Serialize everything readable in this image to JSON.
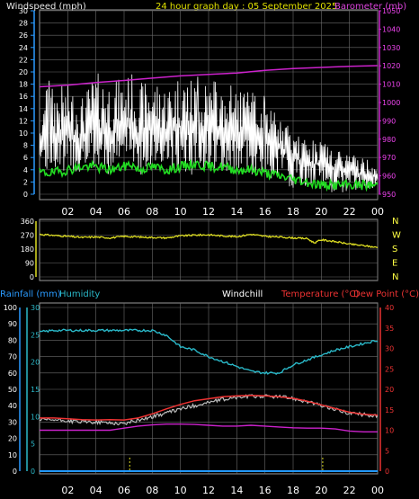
{
  "header": {
    "windspeed": "Windspeed (mph)",
    "day": "24 hour graph day : 05 September 2025",
    "barometer": "Barometer (mb)"
  },
  "colors": {
    "background": "#000000",
    "frame": "#9a9a9a",
    "grid": "#6b6b6b",
    "wind": "#ffffff",
    "wind_avg": "#22dd22",
    "barometer": "#cc22cc",
    "direction": "#dddd22",
    "rain": "#2299ff",
    "humidity": "#2ab8c8",
    "windchill": "#ffffff",
    "temperature": "#ee3333",
    "dewpoint": "#cc22cc",
    "rain_ticks": "#dddd22"
  },
  "chart_data": [
    {
      "type": "line",
      "title": "24 hour graph day : 05 September 2025",
      "x_ticks": [
        "02",
        "04",
        "06",
        "08",
        "10",
        "12",
        "14",
        "16",
        "18",
        "20",
        "22",
        "00"
      ],
      "y_left": {
        "label": "Windspeed (mph)",
        "range": [
          0,
          30
        ],
        "ticks": [
          "0",
          "2",
          "4",
          "6",
          "8",
          "10",
          "12",
          "14",
          "16",
          "18",
          "20",
          "22",
          "24",
          "26",
          "28",
          "30"
        ]
      },
      "y_right": {
        "label": "Barometer (mb)",
        "range": [
          950,
          1050
        ],
        "ticks": [
          "950",
          "960",
          "970",
          "980",
          "990",
          "1000",
          "1010",
          "1020",
          "1030",
          "1040",
          "1050"
        ]
      },
      "grid": true,
      "series": [
        {
          "name": "Windspeed (mph)",
          "axis": "left",
          "gust_envelope": true,
          "x": [
            0,
            1,
            2,
            3,
            4,
            5,
            6,
            6.5,
            7,
            8,
            9,
            10,
            11,
            12,
            13,
            14,
            15,
            16,
            17,
            18,
            19,
            20,
            21,
            22,
            23,
            24
          ],
          "avg": [
            9,
            9,
            10,
            9,
            11,
            10,
            11,
            12,
            10,
            11,
            10,
            11,
            10,
            11,
            10,
            10,
            10,
            9,
            8,
            6,
            5,
            5,
            4,
            4,
            3,
            3
          ],
          "max": [
            17,
            18,
            18,
            16,
            20,
            19,
            19,
            20,
            18,
            19,
            18,
            20,
            19,
            19,
            18,
            18,
            17,
            15,
            13,
            10,
            9,
            9,
            7,
            7,
            6,
            6
          ],
          "min": [
            4,
            3,
            4,
            3,
            4,
            3,
            4,
            5,
            3,
            4,
            3,
            4,
            3,
            4,
            3,
            3,
            3,
            3,
            2,
            1,
            1,
            1,
            0,
            0,
            1,
            1
          ]
        },
        {
          "name": "Wind average",
          "axis": "left",
          "x": [
            0,
            1,
            2,
            3,
            4,
            5,
            6,
            6.5,
            7,
            8,
            9,
            10,
            11,
            12,
            13,
            14,
            15,
            16,
            17,
            18,
            19,
            20,
            21,
            22,
            23,
            24
          ],
          "values": [
            3.5,
            3.5,
            4,
            4.5,
            4.5,
            4,
            4.5,
            5,
            4,
            4.5,
            4,
            4.5,
            5,
            4.5,
            4.5,
            4,
            4,
            3.5,
            3,
            2.5,
            2,
            1.5,
            1.5,
            1.5,
            1.5,
            1.5
          ]
        },
        {
          "name": "Barometer (mb)",
          "axis": "right",
          "x": [
            0,
            2,
            4,
            6,
            8,
            10,
            12,
            14,
            16,
            18,
            20,
            22,
            24
          ],
          "values": [
            1008.6,
            1009.4,
            1010.9,
            1012.0,
            1013.3,
            1014.5,
            1015.3,
            1016.1,
            1017.5,
            1018.5,
            1019.1,
            1019.7,
            1020.1
          ]
        }
      ]
    },
    {
      "type": "line",
      "x_ticks": [
        "02",
        "04",
        "06",
        "08",
        "10",
        "12",
        "14",
        "16",
        "18",
        "20",
        "22",
        "00"
      ],
      "y_left": {
        "range": [
          0,
          360
        ],
        "ticks": [
          "0",
          "90",
          "180",
          "270",
          "360"
        ]
      },
      "y_right": {
        "ticks": [
          "N",
          "W",
          "S",
          "E",
          "N"
        ]
      },
      "grid": true,
      "series": [
        {
          "name": "Wind direction",
          "x": [
            0,
            1,
            2,
            3,
            4,
            5,
            6,
            7,
            8,
            9,
            10,
            11,
            12,
            13,
            14,
            15,
            16,
            17,
            18,
            19,
            19.5,
            20,
            21,
            22,
            23,
            24
          ],
          "values": [
            275,
            268,
            262,
            255,
            258,
            252,
            262,
            258,
            255,
            252,
            265,
            270,
            272,
            265,
            260,
            275,
            262,
            258,
            252,
            248,
            220,
            240,
            228,
            212,
            202,
            190
          ]
        }
      ]
    },
    {
      "type": "line",
      "x_ticks": [
        "02",
        "04",
        "06",
        "08",
        "10",
        "12",
        "14",
        "16",
        "18",
        "20",
        "22",
        "00"
      ],
      "legend": [
        "Rainfall (mm)",
        "Humidity",
        "Windchill",
        "Temperature (°C)",
        "Dew Point (°C)"
      ],
      "y_humidity": {
        "label": "Humidity",
        "range": [
          0,
          100
        ],
        "ticks": [
          "0",
          "10",
          "20",
          "30",
          "40",
          "50",
          "60",
          "70",
          "80",
          "90",
          "100"
        ]
      },
      "y_rain": {
        "label": "Rainfall (mm)",
        "range": [
          0,
          30
        ],
        "ticks": [
          "0",
          "5",
          "10",
          "15",
          "20",
          "25",
          "30"
        ]
      },
      "y_temp": {
        "label": "Temperature (°C)",
        "range": [
          0,
          40
        ],
        "ticks": [
          "0",
          "5",
          "10",
          "15",
          "20",
          "25",
          "30",
          "35",
          "40"
        ]
      },
      "grid": true,
      "series": [
        {
          "name": "Humidity",
          "axis": "humidity",
          "x": [
            0,
            1,
            2,
            3,
            4,
            5,
            6,
            7,
            8,
            9,
            10,
            11,
            12,
            13,
            14,
            15,
            16,
            17,
            18,
            19,
            20,
            21,
            22,
            23,
            24
          ],
          "values": [
            85,
            86,
            86,
            86,
            86,
            86,
            86,
            86,
            86,
            83,
            76,
            74,
            70,
            67,
            64,
            61,
            60,
            60,
            65,
            68,
            71,
            74,
            76,
            78,
            80
          ]
        },
        {
          "name": "Rainfall (mm)",
          "axis": "rain",
          "x": [
            0,
            24
          ],
          "values": [
            0,
            0
          ]
        },
        {
          "name": "Windchill",
          "axis": "temp",
          "x": [
            0,
            1,
            2,
            3,
            4,
            5,
            6,
            7,
            8,
            9,
            10,
            11,
            12,
            13,
            14,
            15,
            16,
            17,
            18,
            19,
            20,
            21,
            22,
            23,
            24
          ],
          "values": [
            12.5,
            12.5,
            12.3,
            12,
            12,
            11.8,
            11.6,
            12.5,
            13.3,
            14.2,
            15.2,
            16,
            16.8,
            17.5,
            18,
            18.3,
            18.3,
            18.2,
            17.8,
            17,
            16,
            15,
            14.2,
            13.8,
            13.5
          ]
        },
        {
          "name": "Temperature (°C)",
          "axis": "temp",
          "x": [
            0,
            1,
            2,
            3,
            4,
            5,
            6,
            7,
            8,
            9,
            10,
            11,
            12,
            13,
            14,
            15,
            16,
            17,
            18,
            19,
            20,
            21,
            22,
            23,
            24
          ],
          "values": [
            13,
            13,
            12.8,
            12.6,
            12.5,
            12.6,
            12.5,
            13,
            14,
            15.2,
            16.3,
            17.2,
            17.7,
            18.2,
            18.4,
            18.5,
            18.4,
            18.2,
            17.8,
            17.1,
            16.2,
            15.3,
            14.4,
            13.9,
            13.7
          ]
        },
        {
          "name": "Dew Point (°C)",
          "axis": "temp",
          "x": [
            0,
            1,
            2,
            3,
            4,
            5,
            6,
            7,
            8,
            9,
            10,
            11,
            12,
            13,
            14,
            15,
            16,
            17,
            18,
            19,
            20,
            21,
            22,
            23,
            24
          ],
          "values": [
            10,
            10,
            10,
            10,
            10,
            10,
            10.5,
            11,
            11.3,
            11.5,
            11.5,
            11.4,
            11.2,
            11,
            11,
            11.2,
            11,
            10.8,
            10.6,
            10.5,
            10.5,
            10.3,
            9.8,
            9.6,
            9.6
          ]
        },
        {
          "name": "Rain marker",
          "axis": "rain",
          "x": [
            6.4,
            20.1
          ],
          "values": [
            0,
            0
          ]
        }
      ]
    }
  ]
}
